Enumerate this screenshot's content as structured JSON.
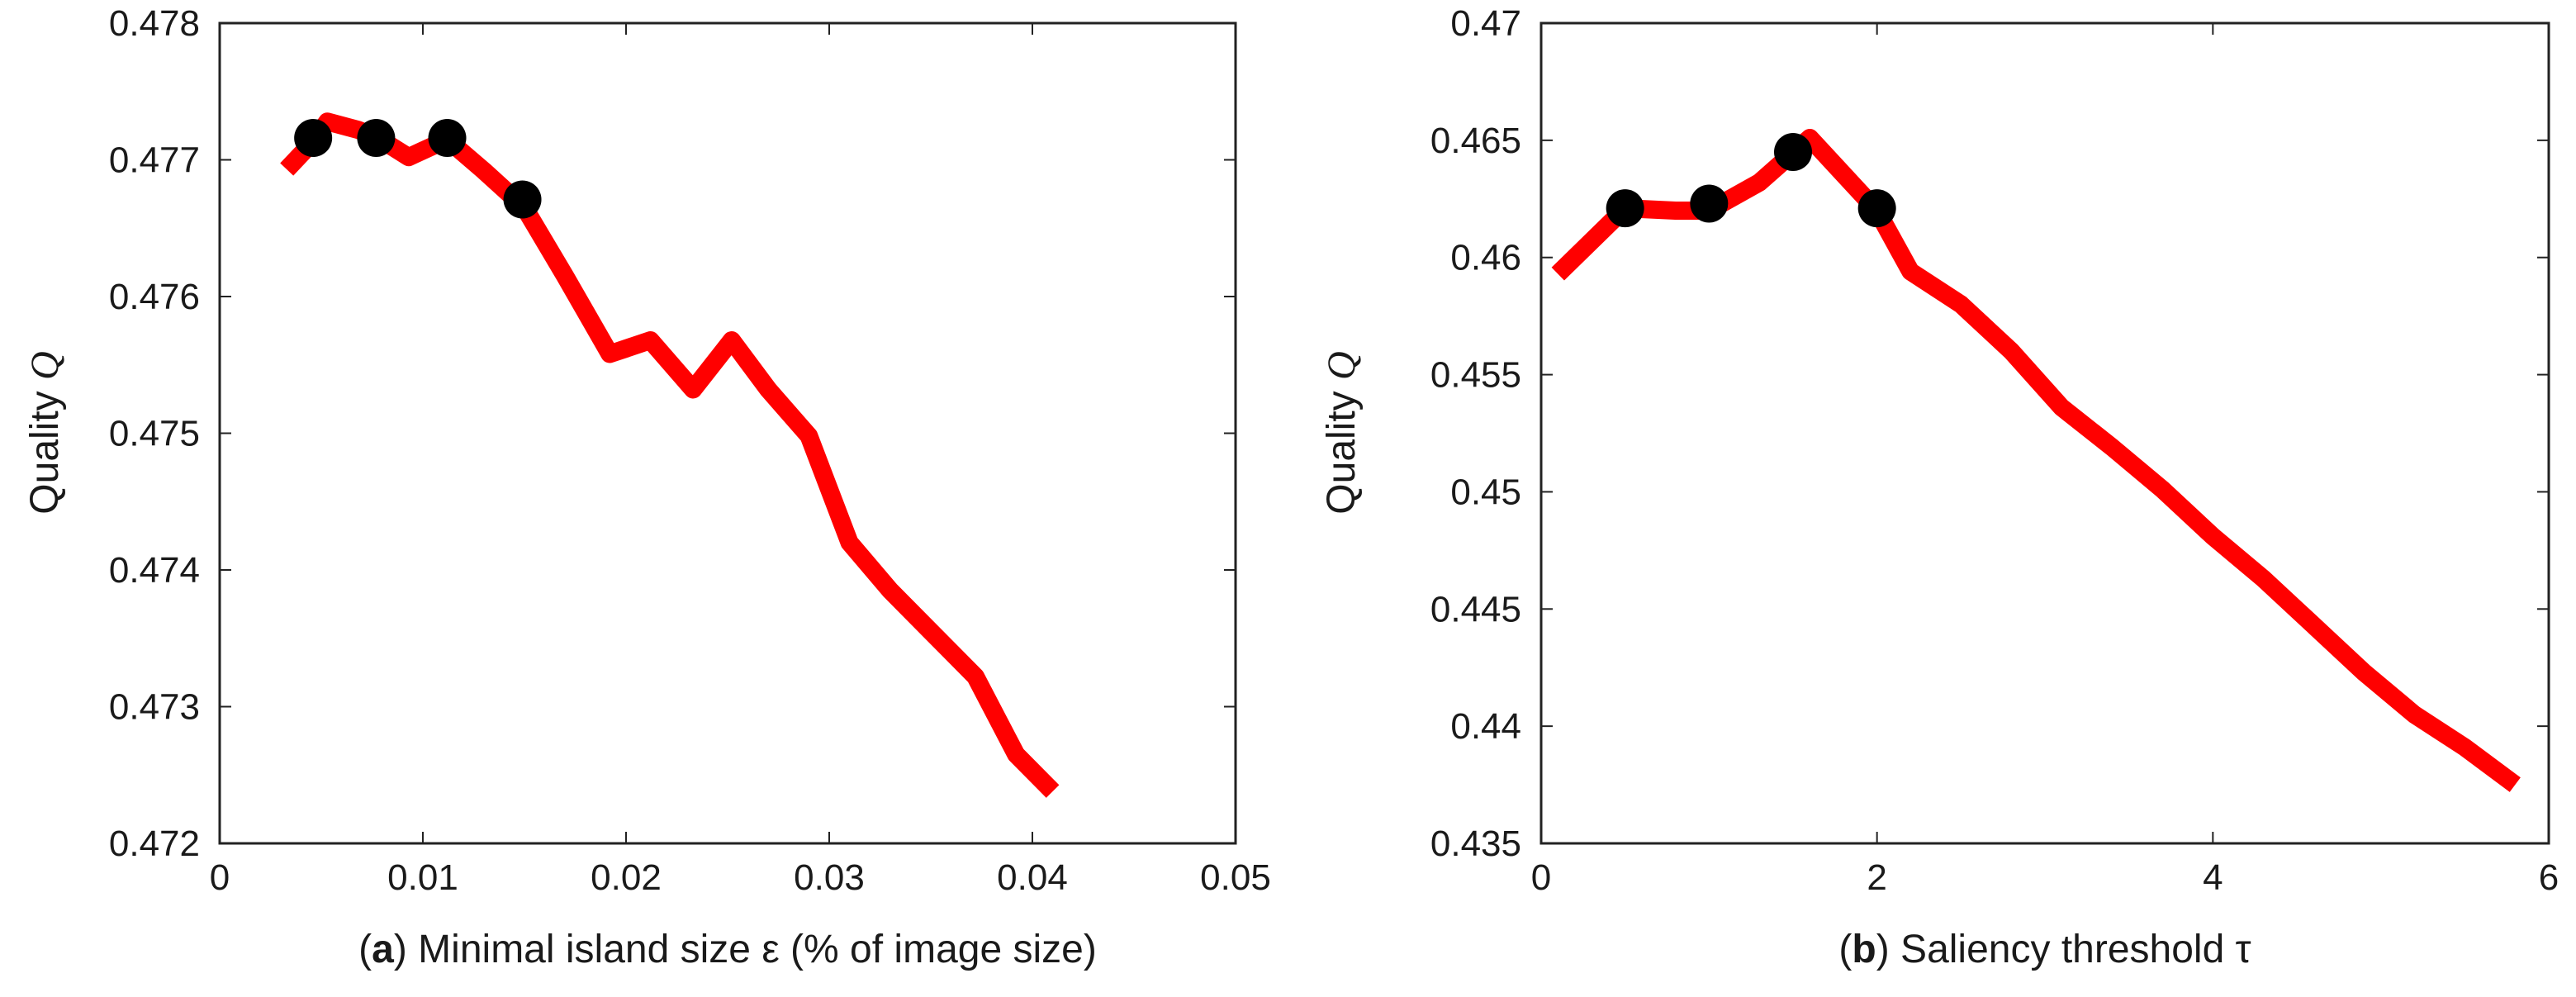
{
  "chart_data": [
    {
      "type": "line",
      "panel": "a",
      "title": "",
      "xlabel": {
        "prefix": "(",
        "panel_letter": "a",
        "suffix": ")",
        "text": " Minimal island size ε (% of image size)"
      },
      "ylabel": {
        "text": "Quality ",
        "symbol": "Q"
      },
      "xlim": [
        0,
        0.05
      ],
      "ylim": [
        0.472,
        0.478
      ],
      "xticks": [
        0,
        0.01,
        0.02,
        0.03,
        0.04,
        0.05
      ],
      "xtick_labels": [
        "0",
        "0.01",
        "0.02",
        "0.03",
        "0.04",
        "0.05"
      ],
      "yticks": [
        0.472,
        0.473,
        0.474,
        0.475,
        0.476,
        0.477,
        0.478
      ],
      "ytick_labels": [
        "0.472",
        "0.473",
        "0.474",
        "0.475",
        "0.476",
        "0.477",
        "0.478"
      ],
      "series": [
        {
          "name": "quality",
          "color": "#ff0000",
          "x": [
            0.0033,
            0.0047,
            0.0053,
            0.0068,
            0.0078,
            0.0093,
            0.0112,
            0.013,
            0.015,
            0.017,
            0.0192,
            0.0212,
            0.0233,
            0.0252,
            0.027,
            0.029,
            0.031,
            0.033,
            0.035,
            0.0372,
            0.0392,
            0.041
          ],
          "y": [
            0.47693,
            0.47715,
            0.47728,
            0.47722,
            0.47716,
            0.47702,
            0.47715,
            0.47692,
            0.47665,
            0.47615,
            0.47558,
            0.47568,
            0.47532,
            0.47568,
            0.47532,
            0.47498,
            0.4742,
            0.47385,
            0.47355,
            0.47322,
            0.47265,
            0.47238
          ]
        }
      ],
      "markers": {
        "color": "#000000",
        "points": [
          {
            "x": 0.0046,
            "y": 0.47716
          },
          {
            "x": 0.0077,
            "y": 0.47716
          },
          {
            "x": 0.0112,
            "y": 0.47716
          },
          {
            "x": 0.0149,
            "y": 0.47671
          }
        ]
      }
    },
    {
      "type": "line",
      "panel": "b",
      "title": "",
      "xlabel": {
        "prefix": "(",
        "panel_letter": "b",
        "suffix": ")",
        "text": " Saliency threshold  τ"
      },
      "ylabel": {
        "text": "Quality ",
        "symbol": "Q"
      },
      "xlim": [
        0,
        6
      ],
      "ylim": [
        0.435,
        0.47
      ],
      "xticks": [
        0,
        2,
        4,
        6
      ],
      "xtick_labels": [
        "0",
        "2",
        "4",
        "6"
      ],
      "yticks": [
        0.435,
        0.44,
        0.445,
        0.45,
        0.455,
        0.46,
        0.465,
        0.47
      ],
      "ytick_labels": [
        "0.435",
        "0.44",
        "0.445",
        "0.45",
        "0.455",
        "0.46",
        "0.465",
        "0.47"
      ],
      "series": [
        {
          "name": "quality",
          "color": "#ff0000",
          "x": [
            0.1,
            0.5,
            0.8,
            1.0,
            1.3,
            1.6,
            2.0,
            2.2,
            2.5,
            2.8,
            3.1,
            3.4,
            3.7,
            4.0,
            4.3,
            4.6,
            4.9,
            5.2,
            5.5,
            5.8
          ],
          "y": [
            0.4593,
            0.4621,
            0.462,
            0.462,
            0.4632,
            0.4651,
            0.462,
            0.4594,
            0.458,
            0.456,
            0.4536,
            0.4519,
            0.4501,
            0.4481,
            0.4463,
            0.4443,
            0.4423,
            0.4405,
            0.4391,
            0.4375
          ]
        }
      ],
      "markers": {
        "color": "#000000",
        "points": [
          {
            "x": 0.5,
            "y": 0.4621
          },
          {
            "x": 1.0,
            "y": 0.4623
          },
          {
            "x": 1.5,
            "y": 0.4645
          },
          {
            "x": 2.0,
            "y": 0.4621
          }
        ]
      }
    }
  ]
}
